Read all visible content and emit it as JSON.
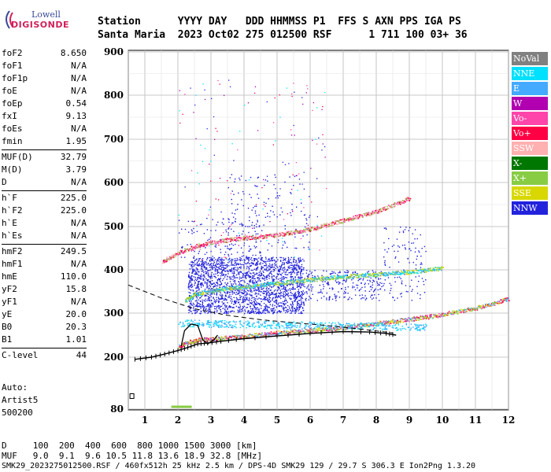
{
  "logo": {
    "line1": "Lowell",
    "line2": "DIGISONDE"
  },
  "header": {
    "row1": "Station      YYYY DAY   DDD HHMMSS P1  FFS S AXN PPS IGA PS",
    "row2": "Santa Maria  2023 Oct02 275 012500 RSF      1 711 100 03+ 36"
  },
  "params": [
    {
      "label": "foF2",
      "value": "8.650"
    },
    {
      "label": "foF1",
      "value": "N/A"
    },
    {
      "label": "foF1p",
      "value": "N/A"
    },
    {
      "label": "foE",
      "value": "N/A"
    },
    {
      "label": "foEp",
      "value": "0.54"
    },
    {
      "label": "fxI",
      "value": "9.13"
    },
    {
      "label": "foEs",
      "value": "N/A"
    },
    {
      "label": "fmin",
      "value": "1.95"
    },
    {
      "label": "MUF(D)",
      "value": "32.79"
    },
    {
      "label": "M(D)",
      "value": "3.79"
    },
    {
      "label": "D",
      "value": "N/A"
    },
    {
      "label": "h`F",
      "value": "225.0"
    },
    {
      "label": "h`F2",
      "value": "225.0"
    },
    {
      "label": "h`E",
      "value": "N/A"
    },
    {
      "label": "h`Es",
      "value": "N/A"
    },
    {
      "label": "hmF2",
      "value": "249.5"
    },
    {
      "label": "hmF1",
      "value": "N/A"
    },
    {
      "label": "hmE",
      "value": "110.0"
    },
    {
      "label": "yF2",
      "value": "15.8"
    },
    {
      "label": "yF1",
      "value": "N/A"
    },
    {
      "label": "yE",
      "value": "20.0"
    },
    {
      "label": "B0",
      "value": "20.3"
    },
    {
      "label": "B1",
      "value": "1.01"
    },
    {
      "label": "C-level",
      "value": "44"
    }
  ],
  "autoscaling": {
    "line1": "Auto:",
    "line2": "Artist5",
    "line3": "500200"
  },
  "legend": [
    {
      "label": "NoVal",
      "color": "#808080"
    },
    {
      "label": "NNE",
      "color": "#00e0ff"
    },
    {
      "label": "E",
      "color": "#44aaff"
    },
    {
      "label": "W",
      "color": "#b000b0"
    },
    {
      "label": "Vo-",
      "color": "#ff44aa"
    },
    {
      "label": "Vo+",
      "color": "#ff0044"
    },
    {
      "label": "SSW",
      "color": "#ffb0b0"
    },
    {
      "label": "X-",
      "color": "#007700"
    },
    {
      "label": "X+",
      "color": "#88cc44"
    },
    {
      "label": "SSE",
      "color": "#d8d800"
    },
    {
      "label": "NNW",
      "color": "#2222dd"
    }
  ],
  "footer": {
    "d_row": "D     100  200  400  600  800 1000 1500 3000 [km]",
    "muf_row": "MUF   9.0  9.1  9.6 10.5 11.8 13.6 18.9 32.8 [MHz]",
    "info_row": "SMK29_2023275012500.RSF / 460fx512h 25 kHz 2.5 km / DPS-4D SMK29 129 / 29.7 S 306.3 E Ion2Png 1.3.20"
  },
  "chart_data": {
    "type": "scatter",
    "xlim": [
      0.5,
      12
    ],
    "ylim": [
      80,
      900
    ],
    "x_ticks": [
      "1",
      "2",
      "3",
      "4",
      "5",
      "6",
      "7",
      "8",
      "9",
      "10",
      "11",
      "12"
    ],
    "y_ticks": [
      "80",
      "200",
      "300",
      "400",
      "500",
      "600",
      "700",
      "800",
      "900"
    ],
    "grid": true,
    "traces": [
      {
        "name": "profile",
        "x": [
          0.7,
          1.2,
          1.6,
          2.0,
          2.3,
          2.6,
          2.9,
          3.3,
          4.0,
          5.0,
          6.0,
          7.0,
          7.8,
          8.3,
          8.6
        ],
        "y": [
          195,
          200,
          207,
          215,
          222,
          230,
          232,
          236,
          242,
          248,
          254,
          258,
          257,
          254,
          250
        ]
      },
      {
        "name": "trace_F2_o",
        "x": [
          2.0,
          2.3,
          2.6,
          3.0,
          3.5,
          4.0,
          4.5,
          5.0,
          5.5,
          6.0,
          6.5,
          7.0,
          7.5,
          8.0,
          8.5,
          9.0,
          9.5,
          10.0,
          10.5,
          11.0,
          11.5,
          12.0
        ],
        "y": [
          225,
          235,
          240,
          242,
          245,
          248,
          252,
          256,
          260,
          262,
          265,
          268,
          272,
          278,
          282,
          287,
          292,
          298,
          305,
          313,
          322,
          335
        ]
      },
      {
        "name": "trace_second_hop",
        "x": [
          2.2,
          2.5,
          3.0,
          3.5,
          4.0,
          4.5,
          5.0,
          5.5,
          6.0,
          6.5,
          7.0,
          7.5,
          8.0,
          8.5,
          9.0,
          9.5,
          10.0
        ],
        "y": [
          330,
          345,
          352,
          358,
          362,
          366,
          370,
          374,
          378,
          382,
          385,
          388,
          390,
          393,
          396,
          400,
          405
        ]
      },
      {
        "name": "trace_third_hop",
        "x": [
          1.5,
          2.0,
          2.5,
          3.0,
          3.5,
          4.0,
          4.5,
          5.0,
          5.5,
          6.0,
          6.5,
          7.0,
          7.5,
          8.0,
          8.5,
          9.0
        ],
        "y": [
          420,
          440,
          455,
          465,
          470,
          475,
          478,
          482,
          488,
          495,
          505,
          515,
          525,
          535,
          550,
          565
        ]
      }
    ]
  }
}
